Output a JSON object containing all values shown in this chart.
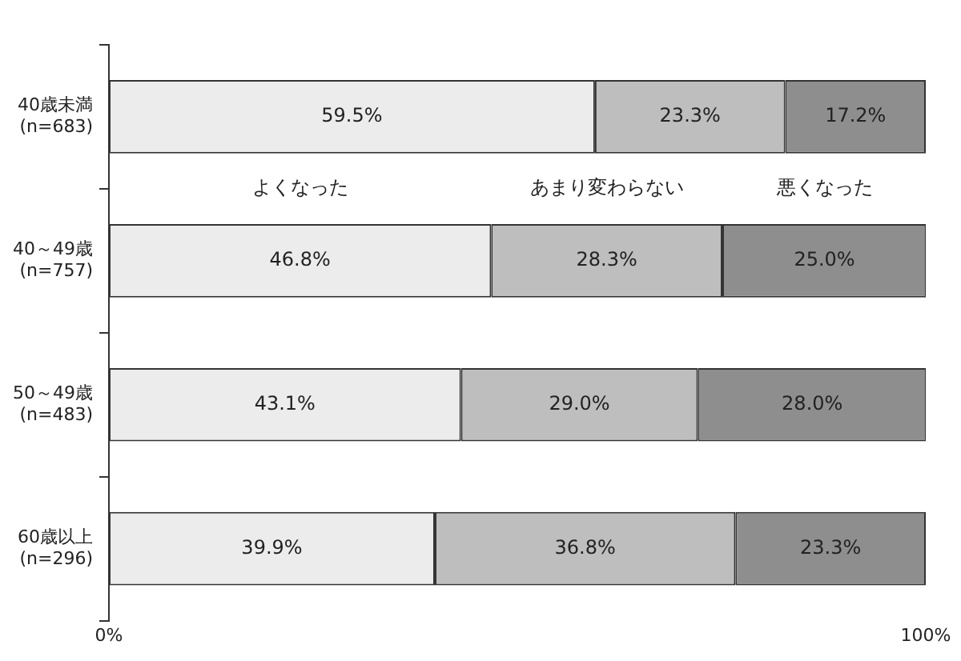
{
  "chart_data": {
    "type": "bar",
    "orientation": "horizontal",
    "stacked": true,
    "categories": [
      "40歳未満\n(n=683)",
      "40～49歳\n(n=757)",
      "50～49歳\n(n=483)",
      "60歳以上\n(n=296)"
    ],
    "series": [
      {
        "name": "よくなった",
        "color": "#ececec",
        "values": [
          59.5,
          46.8,
          43.1,
          39.9
        ],
        "value_labels": [
          "59.5%",
          "46.8%",
          "43.1%",
          "39.9%"
        ]
      },
      {
        "name": "あまり変わらない",
        "color": "#bebebe",
        "values": [
          23.3,
          28.3,
          29.0,
          36.8
        ],
        "value_labels": [
          "23.3%",
          "28.3%",
          "29.0%",
          "36.8%"
        ]
      },
      {
        "name": "悪くなった",
        "color": "#8e8e8e",
        "values": [
          17.2,
          25.0,
          28.0,
          23.3
        ],
        "value_labels": [
          "17.2%",
          "25.0%",
          "28.0%",
          "23.3%"
        ]
      }
    ],
    "xlim": [
      0,
      100
    ],
    "xticks": [
      {
        "value": 0,
        "label": "0%"
      },
      {
        "value": 100,
        "label": "100%"
      }
    ],
    "grid": false
  }
}
